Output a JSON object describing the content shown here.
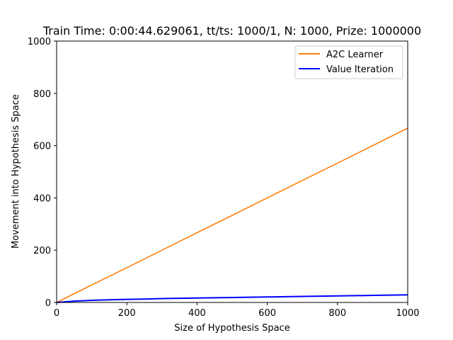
{
  "chart_data": {
    "type": "line",
    "title": "Train Time: 0:00:44.629061, tt/ts: 1000/1, N: 1000, Prize: 1000000",
    "xlabel": "Size of Hypothesis Space",
    "ylabel": "Movement into Hypothesis Space",
    "xlim": [
      0,
      1000
    ],
    "ylim": [
      0,
      1000
    ],
    "xticks": [
      0,
      200,
      400,
      600,
      800,
      1000
    ],
    "yticks": [
      0,
      200,
      400,
      600,
      800,
      1000
    ],
    "grid": false,
    "legend_position": "top-right",
    "series": [
      {
        "name": "A2C Learner",
        "color": "#ff7f0e",
        "x": [
          0,
          100,
          200,
          300,
          400,
          500,
          600,
          700,
          800,
          900,
          1000
        ],
        "values": [
          0,
          67,
          133,
          200,
          267,
          333,
          400,
          467,
          533,
          600,
          667
        ]
      },
      {
        "name": "Value Iteration",
        "color": "#0000ff",
        "x": [
          0,
          50,
          100,
          150,
          200,
          250,
          300,
          350,
          400,
          450,
          500,
          550,
          600,
          650,
          700,
          750,
          800,
          850,
          900,
          950,
          1000
        ],
        "values": [
          0,
          5,
          8,
          10,
          12,
          13,
          15,
          16,
          17,
          18,
          19,
          20,
          21,
          22,
          23,
          24,
          25,
          26,
          27,
          28,
          29
        ]
      }
    ]
  }
}
